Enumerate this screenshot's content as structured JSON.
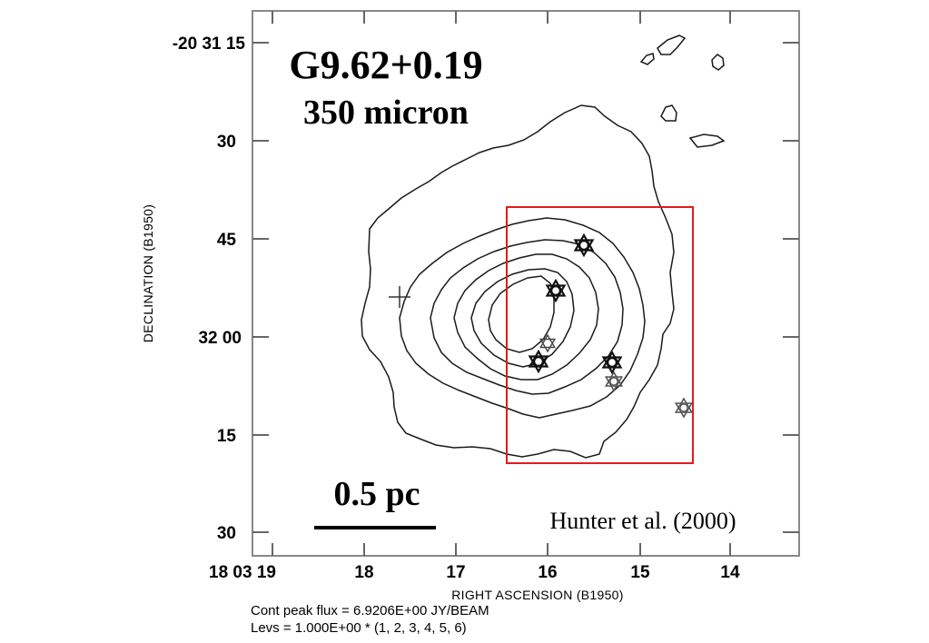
{
  "chart_data": {
    "type": "contour",
    "title": "G9.62+0.19",
    "subtitle": "350 micron",
    "xlabel": "RIGHT ASCENSION (B1950)",
    "ylabel": "DECLINATION (B1950)",
    "x_ticks": [
      "18 03 19",
      "18",
      "17",
      "16",
      "15",
      "14"
    ],
    "y_ticks": [
      "-20 31 15",
      "30",
      "45",
      "32 00",
      "15",
      "30"
    ],
    "scale_bar_label": "0.5 pc",
    "credit": "Hunter et al. (2000)",
    "footer": [
      "Cont peak flux =  6.9206E+00 JY/BEAM",
      "Levs = 1.000E+00 * (1, 2, 3, 4, 5, 6)"
    ],
    "contour_levels": [
      1,
      2,
      3,
      4,
      5,
      6
    ],
    "highlight_box_color": "#e31b1b",
    "marker_icons": [
      "star-marker-icon",
      "cross-marker-icon"
    ]
  }
}
